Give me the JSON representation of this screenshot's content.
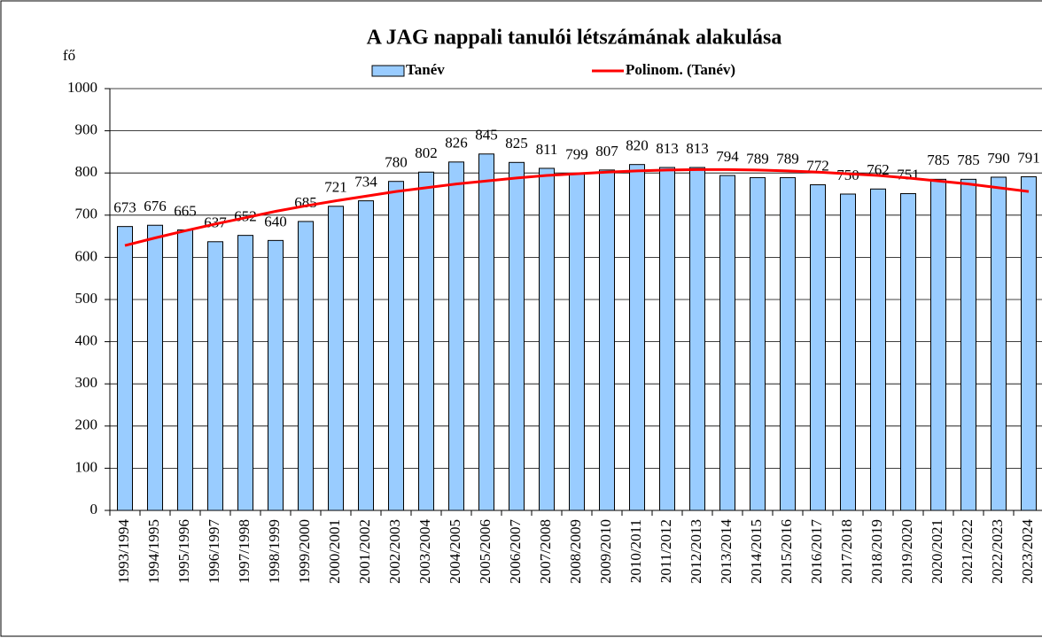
{
  "chart_data": {
    "type": "bar",
    "title": "A JAG nappali tanulói létszámának alakulása",
    "y_label": "fő",
    "categories": [
      "1993/1994",
      "1994/1995",
      "1995/1996",
      "1996/1997",
      "1997/1998",
      "1998/1999",
      "1999/2000",
      "2000/2001",
      "2001/2002",
      "2002/2003",
      "2003/2004",
      "2004/2005",
      "2005/2006",
      "2006/2007",
      "2007/2008",
      "2008/2009",
      "2009/2010",
      "2010/2011",
      "2011/2012",
      "2012/2013",
      "2013/2014",
      "2014/2015",
      "2015/2016",
      "2016/2017",
      "2017/2018",
      "2018/2019",
      "2019/2020",
      "2020/2021",
      "2021/2022",
      "2022/2023",
      "2023/2024"
    ],
    "series": [
      {
        "name": "Tanév",
        "type": "bar",
        "color": "#99ccff",
        "data_labels": true,
        "values": [
          673,
          676,
          665,
          637,
          652,
          640,
          685,
          721,
          734,
          780,
          802,
          826,
          845,
          825,
          811,
          799,
          807,
          820,
          813,
          813,
          794,
          789,
          789,
          772,
          750,
          762,
          751,
          785,
          785,
          790,
          791
        ]
      },
      {
        "name": "Polinom. (Tanév)",
        "type": "line",
        "color": "#ff0000",
        "values": [
          628,
          646,
          663,
          679,
          694,
          709,
          722,
          734,
          745,
          756,
          765,
          774,
          781,
          788,
          794,
          798,
          802,
          805,
          807,
          808,
          808,
          807,
          805,
          802,
          798,
          794,
          788,
          781,
          774,
          765,
          756
        ]
      }
    ],
    "ylim": [
      0,
      1000
    ],
    "yticks": [
      0,
      100,
      200,
      300,
      400,
      500,
      600,
      700,
      800,
      900,
      1000
    ],
    "grid": true
  }
}
